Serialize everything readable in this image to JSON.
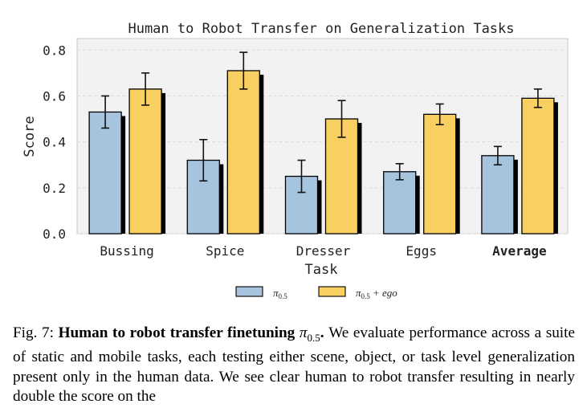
{
  "chart_data": {
    "type": "bar",
    "title": "Human to Robot Transfer on Generalization Tasks",
    "xlabel": "Task",
    "ylabel": "Score",
    "ylim": [
      0,
      0.85
    ],
    "yticks": [
      "0.0",
      "0.2",
      "0.4",
      "0.6",
      "0.8"
    ],
    "ytick_values": [
      0.0,
      0.2,
      0.4,
      0.6,
      0.8
    ],
    "grid": true,
    "legend_position": "bottom-center",
    "categories": [
      "Bussing",
      "Spice",
      "Dresser",
      "Eggs",
      "Average"
    ],
    "bold_categories": [
      "Average"
    ],
    "series": [
      {
        "name": "π0.5",
        "label_base": "π",
        "label_sub": "0.5",
        "label_suffix": "",
        "color": "#a7c4df",
        "values": [
          0.53,
          0.32,
          0.25,
          0.27,
          0.34
        ],
        "errors": [
          0.07,
          0.09,
          0.07,
          0.035,
          0.04
        ]
      },
      {
        "name": "π0.5 + ego",
        "label_base": "π",
        "label_sub": "0.5",
        "label_suffix": " + ego",
        "color": "#f8cf61",
        "values": [
          0.63,
          0.71,
          0.5,
          0.52,
          0.59
        ],
        "errors": [
          0.07,
          0.08,
          0.08,
          0.045,
          0.04
        ]
      }
    ]
  },
  "caption": {
    "prefix": "Fig. 7: ",
    "bold": "Human to robot transfer finetuning ",
    "math_base": "π",
    "math_sub": "0.5",
    "after_math": ".",
    "body": " We evaluate performance across a suite of static and mobile tasks, each testing either scene, object, or task level generalization present only in the human data. We see clear human to robot transfer resulting in nearly double the score on the"
  }
}
